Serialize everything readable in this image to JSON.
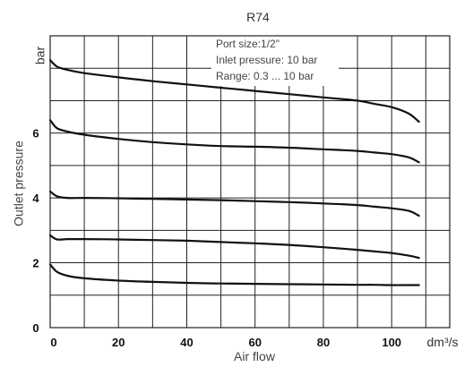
{
  "chart_data": {
    "type": "line",
    "title": "R74",
    "xlabel": "Air flow",
    "ylabel": "Outlet pressure",
    "x_unit": "dm³/s",
    "y_unit": "bar",
    "xlim": [
      0,
      117
    ],
    "ylim": [
      0,
      9
    ],
    "x_ticks": [
      0,
      20,
      40,
      60,
      80,
      100
    ],
    "y_ticks": [
      0,
      2,
      4,
      6
    ],
    "grid": true,
    "annotations": [
      "Port size:1/2\"",
      "Inlet pressure: 10 bar",
      "Range: 0.3 ... 10 bar"
    ],
    "series": [
      {
        "x": [
          0,
          2,
          5,
          10,
          20,
          30,
          40,
          50,
          60,
          70,
          80,
          90,
          95,
          100,
          105,
          108
        ],
        "values": [
          8.25,
          8.05,
          7.95,
          7.85,
          7.72,
          7.6,
          7.5,
          7.4,
          7.3,
          7.2,
          7.1,
          7.0,
          6.9,
          6.8,
          6.6,
          6.35
        ]
      },
      {
        "x": [
          0,
          2,
          5,
          10,
          20,
          30,
          40,
          50,
          60,
          70,
          80,
          90,
          95,
          100,
          105,
          108
        ],
        "values": [
          6.4,
          6.15,
          6.05,
          5.95,
          5.82,
          5.72,
          5.65,
          5.6,
          5.58,
          5.55,
          5.5,
          5.45,
          5.4,
          5.35,
          5.25,
          5.1
        ]
      },
      {
        "x": [
          0,
          2,
          5,
          10,
          20,
          30,
          40,
          50,
          60,
          70,
          80,
          90,
          95,
          100,
          105,
          108
        ],
        "values": [
          4.2,
          4.05,
          4.0,
          4.0,
          3.99,
          3.97,
          3.95,
          3.93,
          3.9,
          3.87,
          3.83,
          3.78,
          3.73,
          3.68,
          3.6,
          3.45
        ]
      },
      {
        "x": [
          0,
          2,
          5,
          10,
          20,
          30,
          40,
          50,
          60,
          70,
          80,
          90,
          95,
          100,
          105,
          108
        ],
        "values": [
          2.85,
          2.72,
          2.73,
          2.73,
          2.72,
          2.7,
          2.68,
          2.64,
          2.6,
          2.55,
          2.48,
          2.4,
          2.35,
          2.3,
          2.22,
          2.15
        ]
      },
      {
        "x": [
          0,
          2,
          5,
          10,
          20,
          30,
          40,
          50,
          60,
          70,
          80,
          90,
          95,
          100,
          105,
          108
        ],
        "values": [
          1.95,
          1.72,
          1.6,
          1.52,
          1.45,
          1.41,
          1.38,
          1.36,
          1.35,
          1.34,
          1.33,
          1.32,
          1.32,
          1.31,
          1.31,
          1.31
        ]
      }
    ]
  }
}
